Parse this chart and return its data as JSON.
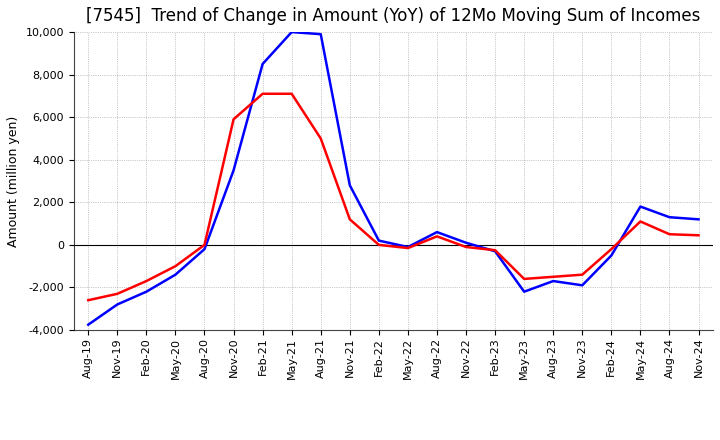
{
  "title": "[7545]  Trend of Change in Amount (YoY) of 12Mo Moving Sum of Incomes",
  "ylabel": "Amount (million yen)",
  "x_labels": [
    "Aug-19",
    "Nov-19",
    "Feb-20",
    "May-20",
    "Aug-20",
    "Nov-20",
    "Feb-21",
    "May-21",
    "Aug-21",
    "Nov-21",
    "Feb-22",
    "May-22",
    "Aug-22",
    "Nov-22",
    "Feb-23",
    "May-23",
    "Aug-23",
    "Nov-23",
    "Feb-24",
    "May-24",
    "Aug-24",
    "Nov-24"
  ],
  "ordinary_income": [
    -3750,
    -2800,
    -2200,
    -1400,
    -200,
    3500,
    8500,
    10000,
    9900,
    2800,
    200,
    -100,
    600,
    100,
    -300,
    -2200,
    -1700,
    -1900,
    -500,
    1800,
    1300,
    1200
  ],
  "net_income": [
    -2600,
    -2300,
    -1700,
    -1000,
    0,
    5900,
    7100,
    7100,
    5000,
    1200,
    0,
    -150,
    400,
    -100,
    -250,
    -1600,
    -1500,
    -1400,
    -200,
    1100,
    500,
    450
  ],
  "ordinary_color": "#0000FF",
  "net_color": "#FF0000",
  "ylim": [
    -4000,
    10000
  ],
  "yticks": [
    -4000,
    -2000,
    0,
    2000,
    4000,
    6000,
    8000,
    10000
  ],
  "background_color": "#FFFFFF",
  "plot_bg_color": "#FFFFFF",
  "grid_color": "#999999",
  "title_fontsize": 12,
  "axis_label_fontsize": 9,
  "tick_fontsize": 8,
  "line_width": 1.8
}
